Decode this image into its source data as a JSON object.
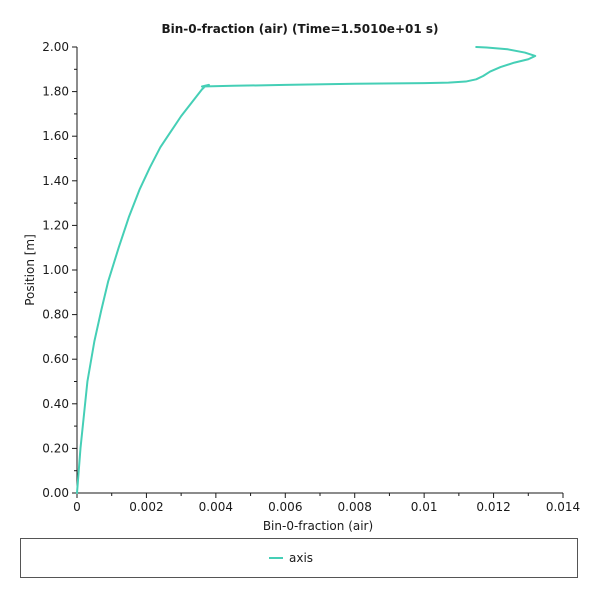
{
  "chart_data": {
    "type": "line",
    "title": "Bin-0-fraction (air) (Time=1.5010e+01 s)",
    "xlabel": "Bin-0-fraction (air)",
    "ylabel": "Position [m]",
    "xlim": [
      0,
      0.014
    ],
    "ylim": [
      0,
      2.0
    ],
    "x_ticks": [
      0,
      0.002,
      0.004,
      0.006,
      0.008,
      0.01,
      0.012,
      0.014
    ],
    "x_tick_labels": [
      "0",
      "0.002",
      "0.004",
      "0.006",
      "0.008",
      "0.01",
      "0.012",
      "0.014"
    ],
    "y_ticks": [
      0,
      0.2,
      0.4,
      0.6,
      0.8,
      1.0,
      1.2,
      1.4,
      1.6,
      1.8,
      2.0
    ],
    "y_tick_labels": [
      "0.00",
      "0.20",
      "0.40",
      "0.60",
      "0.80",
      "1.00",
      "1.20",
      "1.40",
      "1.60",
      "1.80",
      "2.00"
    ],
    "grid": false,
    "legend_position": "bottom",
    "series": [
      {
        "name": "axis",
        "color": "#45cfb6",
        "x": [
          0,
          5e-05,
          0.0001,
          0.0002,
          0.0003,
          0.0005,
          0.0007,
          0.0009,
          0.0012,
          0.0015,
          0.0018,
          0.0021,
          0.0024,
          0.0027,
          0.003,
          0.0033,
          0.0036,
          0.0037,
          0.0038,
          0.0036,
          0.0045,
          0.006,
          0.008,
          0.01,
          0.0107,
          0.0112,
          0.0115,
          0.0117,
          0.0119,
          0.0122,
          0.0126,
          0.013,
          0.0132,
          0.0129,
          0.0124,
          0.0118,
          0.0115
        ],
        "y": [
          0,
          0.1,
          0.2,
          0.35,
          0.5,
          0.68,
          0.82,
          0.95,
          1.1,
          1.24,
          1.36,
          1.46,
          1.55,
          1.62,
          1.69,
          1.75,
          1.81,
          1.825,
          1.83,
          1.823,
          1.826,
          1.83,
          1.835,
          1.838,
          1.84,
          1.845,
          1.855,
          1.87,
          1.89,
          1.91,
          1.93,
          1.945,
          1.96,
          1.975,
          1.99,
          1.998,
          2.0
        ]
      }
    ]
  }
}
